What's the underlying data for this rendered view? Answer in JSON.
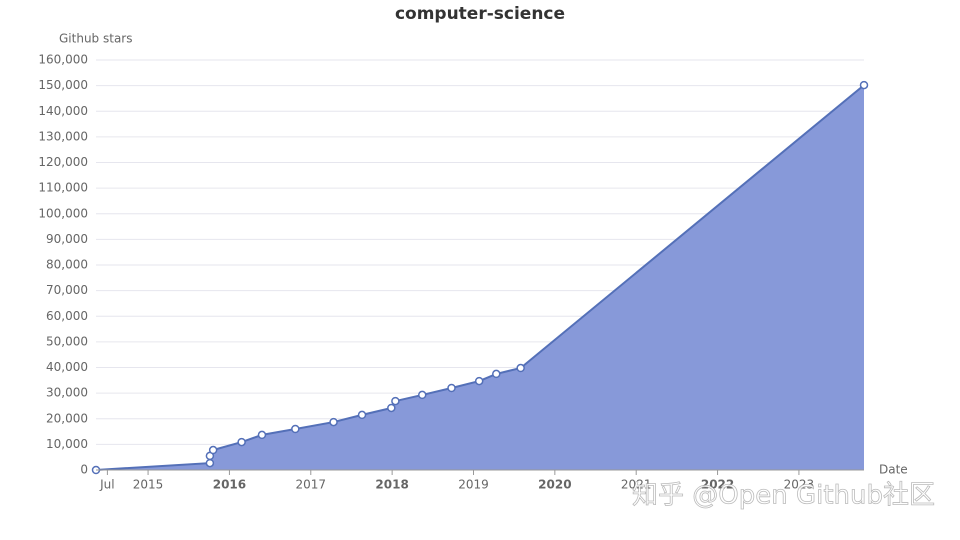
{
  "chart_data": {
    "type": "area",
    "title": "computer-science",
    "y_label": "Github stars",
    "x_label": "Date",
    "x": [
      2014.36,
      2015.76,
      2015.76,
      2015.8,
      2016.15,
      2016.4,
      2016.81,
      2017.28,
      2017.63,
      2017.99,
      2018.04,
      2018.37,
      2018.73,
      2019.07,
      2019.28,
      2019.58,
      2023.8
    ],
    "values": [
      0,
      2700,
      5500,
      7800,
      10900,
      13700,
      16000,
      18700,
      21500,
      24200,
      26900,
      29300,
      32000,
      34700,
      37500,
      39800,
      150200
    ],
    "color": "#8799d9",
    "line_color": "#5470b8",
    "xlim": [
      2014.36,
      2023.8
    ],
    "xticks": [
      {
        "value": 2014.5,
        "label": "Jul"
      },
      2015,
      {
        "value": 2016,
        "label": "2016",
        "bold": true
      },
      2017,
      {
        "value": 2018,
        "label": "2018",
        "bold": true
      },
      2019,
      {
        "value": 2020,
        "label": "2020",
        "bold": true
      },
      2021,
      {
        "value": 2022,
        "label": "2022",
        "bold": true
      },
      2023
    ],
    "ylim": [
      0,
      160000
    ],
    "yticks": [
      0,
      {
        "value": 10000,
        "label": "10,000"
      },
      {
        "value": 20000,
        "label": "20,000"
      },
      {
        "value": 30000,
        "label": "30,000"
      },
      {
        "value": 40000,
        "label": "40,000"
      },
      {
        "value": 50000,
        "label": "50,000"
      },
      {
        "value": 60000,
        "label": "60,000"
      },
      {
        "value": 70000,
        "label": "70,000"
      },
      {
        "value": 80000,
        "label": "80,000"
      },
      {
        "value": 90000,
        "label": "90,000"
      },
      {
        "value": 100000,
        "label": "100,000"
      },
      {
        "value": 110000,
        "label": "110,000"
      },
      {
        "value": 120000,
        "label": "120,000"
      },
      {
        "value": 130000,
        "label": "130,000"
      },
      {
        "value": 140000,
        "label": "140,000"
      },
      {
        "value": 150000,
        "label": "150,000"
      },
      {
        "value": 160000,
        "label": "160,000"
      }
    ],
    "grid": true
  },
  "watermark": "知乎 @Open Github社区"
}
